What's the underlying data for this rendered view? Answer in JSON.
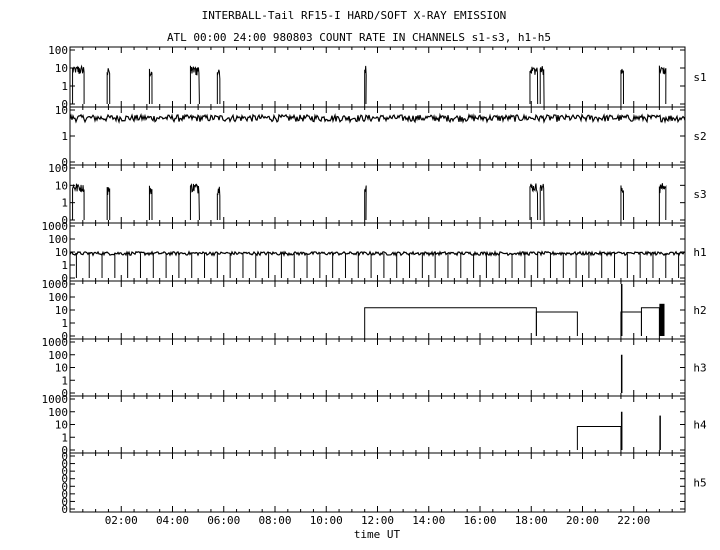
{
  "chart_data": {
    "type": "line",
    "title": "INTERBALL-Tail RF15-I HARD/SOFT X-RAY EMISSION",
    "subtitle": "ATL 00:00 24:00 980803  COUNT RATE IN CHANNELS s1-s3, h1-h5",
    "xlabel": "time UT",
    "xlim": [
      0,
      24
    ],
    "x_ticks": [
      "02:00",
      "04:00",
      "06:00",
      "08:00",
      "10:00",
      "12:00",
      "14:00",
      "16:00",
      "18:00",
      "20:00",
      "22:00"
    ],
    "x_tick_values": [
      2,
      4,
      6,
      8,
      10,
      12,
      14,
      16,
      18,
      20,
      22
    ],
    "y_scale": "log",
    "grid": false,
    "panels": [
      {
        "channel": "s1",
        "y_ticks": [
          "100",
          "10",
          "1",
          "0"
        ],
        "segments": [
          {
            "kind": "burst",
            "x": [
              0.1,
              0.55
            ],
            "level": 8
          },
          {
            "kind": "burst",
            "x": [
              1.45,
              1.55
            ],
            "level": 6
          },
          {
            "kind": "burst",
            "x": [
              3.1,
              3.2
            ],
            "level": 6
          },
          {
            "kind": "burst",
            "x": [
              4.7,
              5.05
            ],
            "level": 8
          },
          {
            "kind": "burst",
            "x": [
              5.75,
              5.85
            ],
            "level": 6
          },
          {
            "kind": "burst",
            "x": [
              11.5,
              11.55
            ],
            "level": 10
          },
          {
            "kind": "burst",
            "x": [
              17.95,
              18.25
            ],
            "level": 8
          },
          {
            "kind": "burst",
            "x": [
              18.35,
              18.5
            ],
            "level": 8
          },
          {
            "kind": "burst",
            "x": [
              21.5,
              21.6
            ],
            "level": 6
          },
          {
            "kind": "burst",
            "x": [
              23.0,
              23.25
            ],
            "level": 8
          }
        ]
      },
      {
        "channel": "s2",
        "y_ticks": [
          "10",
          "1",
          "0"
        ],
        "segments": [
          {
            "kind": "noise",
            "x": [
              0.0,
              24.0
            ],
            "level": 5
          }
        ]
      },
      {
        "channel": "s3",
        "y_ticks": [
          "100",
          "10",
          "1",
          "0"
        ],
        "segments": [
          {
            "kind": "burst",
            "x": [
              0.1,
              0.55
            ],
            "level": 8
          },
          {
            "kind": "burst",
            "x": [
              1.45,
              1.55
            ],
            "level": 6
          },
          {
            "kind": "burst",
            "x": [
              3.1,
              3.2
            ],
            "level": 6
          },
          {
            "kind": "burst",
            "x": [
              4.7,
              5.05
            ],
            "level": 8
          },
          {
            "kind": "burst",
            "x": [
              5.75,
              5.85
            ],
            "level": 6
          },
          {
            "kind": "burst",
            "x": [
              11.5,
              11.55
            ],
            "level": 10
          },
          {
            "kind": "burst",
            "x": [
              17.95,
              18.25
            ],
            "level": 8
          },
          {
            "kind": "burst",
            "x": [
              18.35,
              18.5
            ],
            "level": 8
          },
          {
            "kind": "burst",
            "x": [
              21.5,
              21.6
            ],
            "level": 6
          },
          {
            "kind": "burst",
            "x": [
              23.0,
              23.25
            ],
            "level": 8
          }
        ]
      },
      {
        "channel": "h1",
        "y_ticks": [
          "1000",
          "100",
          "10",
          "1",
          "0"
        ],
        "segments": [
          {
            "kind": "noise",
            "x": [
              0.0,
              24.0
            ],
            "level": 8,
            "dropouts_every": 0.5
          }
        ]
      },
      {
        "channel": "h2",
        "y_ticks": [
          "1000",
          "100",
          "10",
          "1",
          "0"
        ],
        "segments": [
          {
            "kind": "step",
            "x": [
              11.5,
              18.2
            ],
            "level": 15
          },
          {
            "kind": "step",
            "x": [
              18.2,
              19.8
            ],
            "level": 7
          },
          {
            "kind": "step",
            "x": [
              21.5,
              22.3
            ],
            "level": 7
          },
          {
            "kind": "step",
            "x": [
              22.3,
              23.0
            ],
            "level": 15
          },
          {
            "kind": "spike",
            "x": [
              21.5,
              21.55
            ],
            "level": 1000
          },
          {
            "kind": "spike",
            "x": [
              23.0,
              23.2
            ],
            "level": 30
          }
        ]
      },
      {
        "channel": "h3",
        "y_ticks": [
          "1000",
          "100",
          "10",
          "1",
          "0"
        ],
        "segments": [
          {
            "kind": "spike",
            "x": [
              21.5,
              21.55
            ],
            "level": 100
          }
        ]
      },
      {
        "channel": "h4",
        "y_ticks": [
          "1000",
          "100",
          "10",
          "1",
          "0"
        ],
        "segments": [
          {
            "kind": "step",
            "x": [
              19.8,
              21.5
            ],
            "level": 7
          },
          {
            "kind": "spike",
            "x": [
              21.5,
              21.55
            ],
            "level": 100
          },
          {
            "kind": "spike",
            "x": [
              23.0,
              23.03
            ],
            "level": 50
          }
        ]
      },
      {
        "channel": "h5",
        "y_ticks": [
          "0",
          "0",
          "0",
          "0",
          "0",
          "0",
          "0",
          "0"
        ],
        "segments": []
      }
    ]
  }
}
